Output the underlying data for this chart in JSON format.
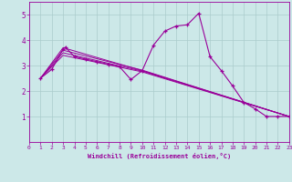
{
  "xlabel": "Windchill (Refroidissement éolien,°C)",
  "background_color": "#cce8e8",
  "grid_color": "#aacccc",
  "line_color": "#990099",
  "xlim": [
    0,
    23
  ],
  "ylim": [
    0,
    5.5
  ],
  "yticks": [
    1,
    2,
    3,
    4,
    5
  ],
  "xticks": [
    0,
    1,
    2,
    3,
    4,
    5,
    6,
    7,
    8,
    9,
    10,
    11,
    12,
    13,
    14,
    15,
    16,
    17,
    18,
    19,
    20,
    21,
    22,
    23
  ],
  "series": [
    [
      1,
      2.5
    ],
    [
      2,
      2.85
    ],
    [
      3,
      3.65
    ],
    [
      3.2,
      3.72
    ],
    [
      4,
      3.35
    ],
    [
      5,
      3.25
    ],
    [
      6,
      3.15
    ],
    [
      7,
      3.05
    ],
    [
      8,
      2.95
    ],
    [
      9,
      2.45
    ],
    [
      10,
      2.8
    ],
    [
      11,
      3.8
    ],
    [
      12,
      4.35
    ],
    [
      13,
      4.55
    ],
    [
      14,
      4.6
    ],
    [
      15,
      5.05
    ],
    [
      16,
      3.35
    ],
    [
      17,
      2.8
    ],
    [
      18,
      2.2
    ],
    [
      19,
      1.55
    ],
    [
      20,
      1.3
    ],
    [
      21,
      1.0
    ],
    [
      22,
      1.0
    ],
    [
      23,
      1.0
    ]
  ],
  "line2": [
    [
      1,
      2.5
    ],
    [
      3,
      3.7
    ],
    [
      10,
      2.8
    ],
    [
      23,
      1.0
    ]
  ],
  "line3": [
    [
      1,
      2.5
    ],
    [
      3,
      3.6
    ],
    [
      10,
      2.82
    ],
    [
      23,
      1.0
    ]
  ],
  "line4": [
    [
      1,
      2.5
    ],
    [
      3,
      3.5
    ],
    [
      10,
      2.78
    ],
    [
      23,
      1.0
    ]
  ],
  "line5": [
    [
      1,
      2.5
    ],
    [
      3,
      3.4
    ],
    [
      10,
      2.75
    ],
    [
      23,
      1.0
    ]
  ]
}
